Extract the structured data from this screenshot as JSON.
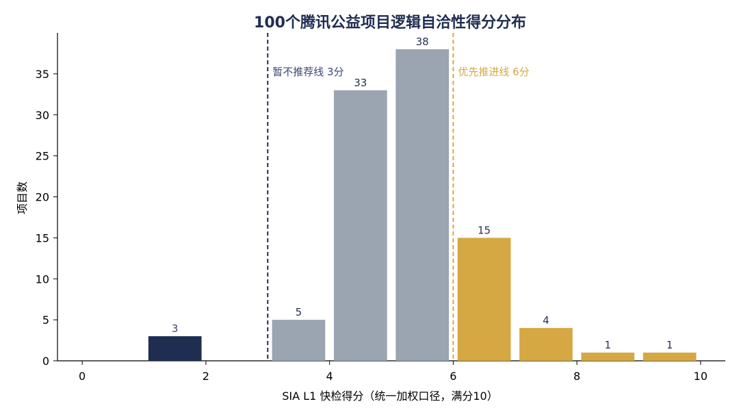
{
  "chart_data": {
    "type": "bar",
    "title": "100个腾讯公益项目逻辑自洽性得分分布",
    "xlabel": "SIA L1 快检得分（统一加权口径，满分10）",
    "ylabel": "项目数",
    "xlim": [
      -0.4,
      10.4
    ],
    "ylim": [
      0,
      40
    ],
    "xticks": [
      0,
      2,
      4,
      6,
      8,
      10
    ],
    "yticks": [
      0,
      5,
      10,
      15,
      20,
      25,
      30,
      35
    ],
    "bin_width": 1,
    "bars": [
      {
        "bin": [
          1,
          2
        ],
        "value": 3,
        "group": "low"
      },
      {
        "bin": [
          3,
          4
        ],
        "value": 5,
        "group": "mid"
      },
      {
        "bin": [
          4,
          5
        ],
        "value": 33,
        "group": "mid"
      },
      {
        "bin": [
          5,
          6
        ],
        "value": 38,
        "group": "mid"
      },
      {
        "bin": [
          6,
          7
        ],
        "value": 15,
        "group": "high"
      },
      {
        "bin": [
          7,
          8
        ],
        "value": 4,
        "group": "high"
      },
      {
        "bin": [
          8,
          9
        ],
        "value": 1,
        "group": "high"
      },
      {
        "bin": [
          9,
          10
        ],
        "value": 1,
        "group": "high"
      }
    ],
    "thresholds": [
      {
        "x": 3,
        "label": "暂不推荐线 3分",
        "group": "low"
      },
      {
        "x": 6,
        "label": "优先推进线 6分",
        "group": "high"
      }
    ],
    "grid": false,
    "colors": {
      "low": "#1f2d51",
      "mid": "#9aa5b1",
      "high": "#d5a843",
      "low_label": "#3a4670",
      "mid_label": "#1f2d51",
      "high_label": "#1f2d51",
      "title": "#1f2d51",
      "axis": "#000000"
    }
  }
}
